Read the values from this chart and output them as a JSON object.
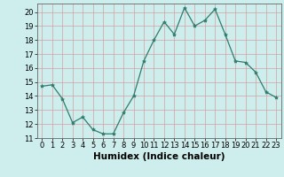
{
  "x": [
    0,
    1,
    2,
    3,
    4,
    5,
    6,
    7,
    8,
    9,
    10,
    11,
    12,
    13,
    14,
    15,
    16,
    17,
    18,
    19,
    20,
    21,
    22,
    23
  ],
  "y": [
    14.7,
    14.8,
    13.8,
    12.1,
    12.5,
    11.6,
    11.3,
    11.3,
    12.8,
    14.0,
    16.5,
    18.0,
    19.3,
    18.4,
    20.3,
    19.0,
    19.4,
    20.2,
    18.4,
    16.5,
    16.4,
    15.7,
    14.3,
    13.9
  ],
  "line_color": "#2e7d6e",
  "marker": "*",
  "marker_size": 3,
  "background_color": "#cdeeed",
  "grid_color": "#b0b0b0",
  "xlabel": "Humidex (Indice chaleur)",
  "ylim": [
    11,
    20.6
  ],
  "xlim": [
    -0.5,
    23.5
  ],
  "yticks": [
    11,
    12,
    13,
    14,
    15,
    16,
    17,
    18,
    19,
    20
  ],
  "xticks": [
    0,
    1,
    2,
    3,
    4,
    5,
    6,
    7,
    8,
    9,
    10,
    11,
    12,
    13,
    14,
    15,
    16,
    17,
    18,
    19,
    20,
    21,
    22,
    23
  ],
  "tick_fontsize": 6,
  "label_fontsize": 7.5
}
